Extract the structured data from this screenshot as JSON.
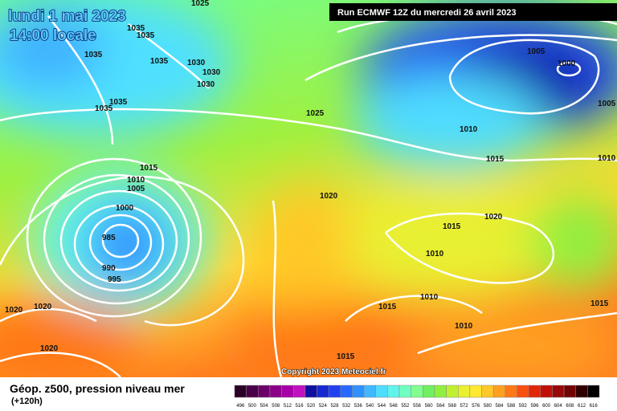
{
  "header": {
    "date": "lundi 1 mai 2023",
    "time": "14:00 locale",
    "run": "Run ECMWF 12Z du mercredi 26 avril 2023"
  },
  "copyright": "Copyright 2023 Meteociel.fr",
  "legend": {
    "title": "Géop. z500, pression niveau mer",
    "lead": "(+120h)",
    "colorbar": {
      "labels": [
        496,
        500,
        504,
        508,
        512,
        516,
        520,
        524,
        528,
        532,
        536,
        540,
        544,
        548,
        552,
        556,
        560,
        564,
        568,
        572,
        576,
        580,
        584,
        588,
        592,
        596,
        600,
        604,
        608,
        612,
        616
      ],
      "colors": [
        "#2a0028",
        "#4a0048",
        "#6a0068",
        "#8a0088",
        "#a800a8",
        "#c010c0",
        "#1010a0",
        "#1828d0",
        "#2040f0",
        "#2868ff",
        "#3090ff",
        "#40b8ff",
        "#50dcff",
        "#60f4ec",
        "#70ffc0",
        "#80ff90",
        "#70f060",
        "#90f040",
        "#c0f030",
        "#e8f030",
        "#ffe830",
        "#ffc828",
        "#ffa020",
        "#ff7818",
        "#f85010",
        "#e02808",
        "#c01008",
        "#980808",
        "#700404",
        "#300000",
        "#000000"
      ]
    }
  },
  "isobar_labels": [
    "1025",
    "1035",
    "1035",
    "1035",
    "1035",
    "1030",
    "1030",
    "1030",
    "1035",
    "1035",
    "1025",
    "1005",
    "1000",
    "1005",
    "1010",
    "1015",
    "1010",
    "1015",
    "1010",
    "1005",
    "1020",
    "1000",
    "985",
    "990",
    "995",
    "1020",
    "1015",
    "1010",
    "1010",
    "1015",
    "1015",
    "1020",
    "1020",
    "1010",
    "1020",
    "1015"
  ]
}
